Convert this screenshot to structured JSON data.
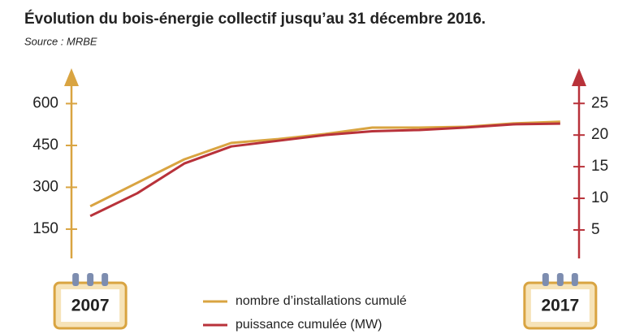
{
  "chart_data": {
    "type": "line",
    "title": "Évolution du bois-énergie collectif jusqu’au 31 décembre 2016.",
    "subtitle": "Source : MRBE",
    "x": [
      2007,
      2008,
      2009,
      2010,
      2011,
      2012,
      2013,
      2014,
      2015,
      2016,
      2017
    ],
    "xlim": [
      2006.6,
      2017.4
    ],
    "xticks": [
      2007,
      2017
    ],
    "ylim": [
      45,
      680
    ],
    "yticks": [
      150,
      300,
      450,
      600
    ],
    "y2lim": [
      0.5,
      28.5
    ],
    "y2ticks": [
      5,
      10,
      15,
      20,
      25
    ],
    "series": [
      {
        "name": "nombre d’installations cumulé",
        "color": "#d9a441",
        "values": [
          232,
          316,
          400,
          459,
          473,
          491,
          514,
          514,
          517,
          529,
          535
        ]
      },
      {
        "name": "puissance cumulée (MW)",
        "color": "#b8323a",
        "axis": "y2",
        "values": [
          7.2,
          10.8,
          15.5,
          18.2,
          19.1,
          20.0,
          20.6,
          20.8,
          21.2,
          21.7,
          21.8
        ]
      }
    ]
  }
}
